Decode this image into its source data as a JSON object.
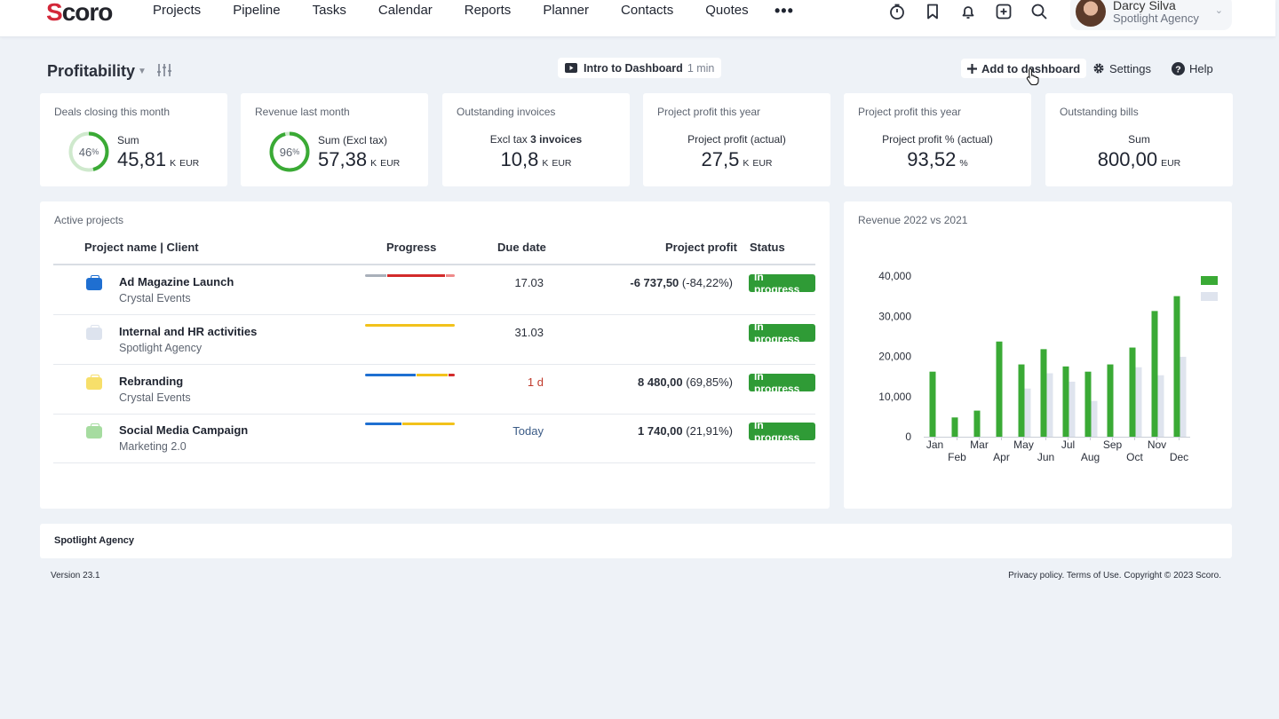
{
  "app": {
    "logo": "Scoro",
    "nav": [
      "Projects",
      "Pipeline",
      "Tasks",
      "Calendar",
      "Reports",
      "Planner",
      "Contacts",
      "Quotes"
    ],
    "more": "•••",
    "icons": [
      "timer-icon",
      "bookmark-icon",
      "bell-icon",
      "add-box-icon",
      "search-icon"
    ],
    "user": {
      "name": "Darcy Silva",
      "org": "Spotlight Agency"
    }
  },
  "header": {
    "title": "Profitability",
    "intro_label": "Intro to Dashboard",
    "intro_duration": "1 min",
    "add_label": "Add to dashboard",
    "settings_label": "Settings",
    "help_label": "Help"
  },
  "kpis": [
    {
      "label": "Deals closing this month",
      "ring_percent": 46,
      "sub": "Sum",
      "value": "45,81",
      "scale": "K",
      "unit": "EUR"
    },
    {
      "label": "Revenue last month",
      "ring_percent": 96,
      "sub": "Sum (Excl tax)",
      "value": "57,38",
      "scale": "K",
      "unit": "EUR"
    },
    {
      "label": "Outstanding invoices",
      "sub_prefix": "Excl tax",
      "sub_bold": "3 invoices",
      "value": "10,8",
      "scale": "K",
      "unit": "EUR"
    },
    {
      "label": "Project profit this year",
      "sub": "Project profit (actual)",
      "value": "27,5",
      "scale": "K",
      "unit": "EUR"
    },
    {
      "label": "Project profit this year",
      "sub": "Project profit % (actual)",
      "value": "93,52",
      "scale": "",
      "unit": "%"
    },
    {
      "label": "Outstanding bills",
      "sub": "Sum",
      "value": "800,00",
      "scale": "",
      "unit": "EUR"
    }
  ],
  "projects": {
    "label": "Active projects",
    "columns": [
      "Project name | Client",
      "Progress",
      "Due date",
      "Project profit",
      "Status"
    ],
    "rows": [
      {
        "name": "Ad Magazine Launch",
        "client": "Crystal Events",
        "color": "#1f6fd1",
        "progress": [
          [
            "#a9b0ba",
            0.24
          ],
          [
            "#d32a2a",
            0.66
          ],
          [
            "#ef8a8a",
            0.1
          ]
        ],
        "due": "17.03",
        "due_color": "#2a2f3a",
        "profit": "-6 737,50",
        "profit_pct": "(-84,22%)",
        "status": "In progress"
      },
      {
        "name": "Internal and HR activities",
        "client": "Spotlight Agency",
        "color": "#dde3ee",
        "progress": [
          [
            "#f2c21b",
            1.0
          ]
        ],
        "due": "31.03",
        "due_color": "#2a2f3a",
        "profit": "",
        "profit_pct": "",
        "status": "In progress"
      },
      {
        "name": "Rebranding",
        "client": "Crystal Events",
        "color": "#f7df6a",
        "progress": [
          [
            "#1f6fd1",
            0.58
          ],
          [
            "#f2c21b",
            0.35
          ],
          [
            "#d32a2a",
            0.07
          ]
        ],
        "due": "1 d",
        "due_color": "#c0392b",
        "profit": "8 480,00",
        "profit_pct": "(69,85%)",
        "status": "In progress"
      },
      {
        "name": "Social Media Campaign",
        "client": "Marketing 2.0",
        "color": "#a6dca0",
        "progress": [
          [
            "#1f6fd1",
            0.41
          ],
          [
            "#f2c21b",
            0.59
          ]
        ],
        "due": "Today",
        "due_color": "#3b5b86",
        "profit": "1 740,00",
        "profit_pct": "(21,91%)",
        "status": "In progress"
      }
    ]
  },
  "chart_data": {
    "type": "bar",
    "title": "Revenue 2022 vs 2021",
    "categories": [
      "Jan",
      "Feb",
      "Mar",
      "Apr",
      "May",
      "Jun",
      "Jul",
      "Aug",
      "Sep",
      "Oct",
      "Nov",
      "Dec"
    ],
    "series": [
      {
        "values": [
          16200,
          4800,
          6500,
          23700,
          18000,
          21800,
          17500,
          16200,
          18000,
          22200,
          31300,
          35000
        ],
        "color": "#3aaa35"
      },
      {
        "values": [
          0,
          0,
          0,
          0,
          12000,
          15800,
          13700,
          8900,
          0,
          17300,
          15300,
          19900
        ],
        "color": "#dfe4ee"
      }
    ],
    "yticks": [
      "0",
      "10,000",
      "20,000",
      "30,000",
      "40,000"
    ],
    "ylim": [
      0,
      40000
    ],
    "legend": "top-right",
    "grid": false
  },
  "footer": {
    "company": "Spotlight Agency",
    "version": "Version 23.1",
    "legal": "Privacy policy. Terms of Use. Copyright © 2023 Scoro."
  }
}
